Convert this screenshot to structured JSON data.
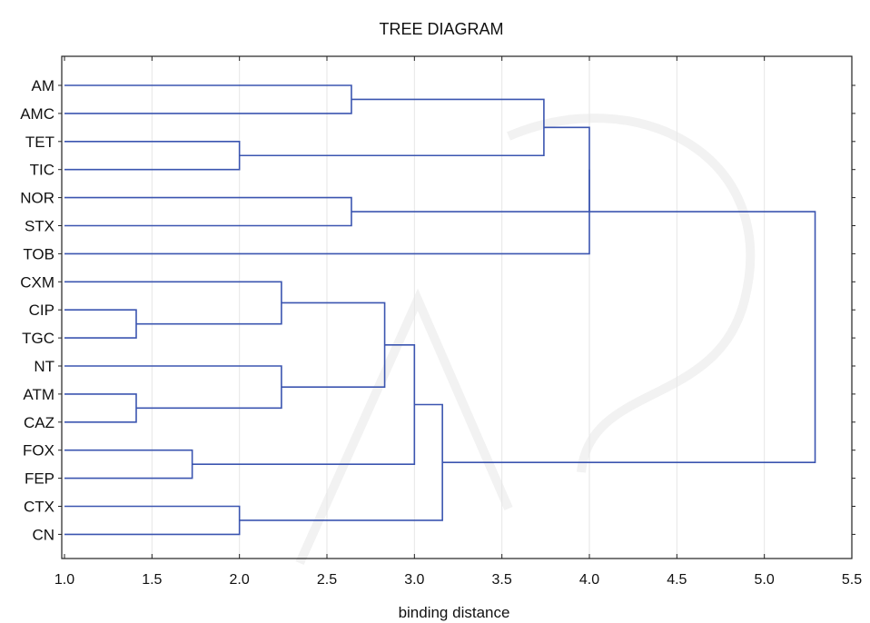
{
  "chart_data": {
    "type": "dendrogram",
    "title": "TREE DIAGRAM",
    "xlabel": "binding distance",
    "xlim": [
      1.0,
      5.5
    ],
    "xticks": [
      "1.0",
      "1.5",
      "2.0",
      "2.5",
      "3.0",
      "3.5",
      "4.0",
      "4.5",
      "5.0",
      "5.5"
    ],
    "leaves": [
      "AM",
      "AMC",
      "TET",
      "TIC",
      "NOR",
      "STX",
      "TOB",
      "CXM",
      "CIP",
      "TGC",
      "NT",
      "ATM",
      "CAZ",
      "FOX",
      "FEP",
      "CTX",
      "CN"
    ],
    "merges": [
      {
        "a": "AM",
        "b": "AMC",
        "distance": 2.64
      },
      {
        "a": "TET",
        "b": "TIC",
        "distance": 2.0
      },
      {
        "a": "AM+AMC",
        "b": "TET+TIC",
        "distance": 3.74
      },
      {
        "a": "NOR",
        "b": "STX",
        "distance": 2.64
      },
      {
        "a": "AM+AMC+TET+TIC",
        "b": "NOR+STX+TOB",
        "distance": 4.0
      },
      {
        "a": "NOR+STX",
        "b": "TOB",
        "distance": 4.0
      },
      {
        "a": "CIP",
        "b": "TGC",
        "distance": 1.41
      },
      {
        "a": "CXM",
        "b": "CIP+TGC",
        "distance": 2.24
      },
      {
        "a": "ATM",
        "b": "CAZ",
        "distance": 1.41
      },
      {
        "a": "NT",
        "b": "ATM+CAZ",
        "distance": 2.24
      },
      {
        "a": "CXM+CIP+TGC",
        "b": "NT+ATM+CAZ",
        "distance": 2.83
      },
      {
        "a": "FOX",
        "b": "FEP",
        "distance": 1.73
      },
      {
        "a": "CXM..CAZ",
        "b": "FOX+FEP",
        "distance": 3.0
      },
      {
        "a": "CTX",
        "b": "CN",
        "distance": 2.0
      },
      {
        "a": "CXM..FEP",
        "b": "CTX+CN",
        "distance": 3.16
      },
      {
        "a": "AM..TOB",
        "b": "CXM..CN",
        "distance": 5.29
      }
    ],
    "grid": true
  }
}
